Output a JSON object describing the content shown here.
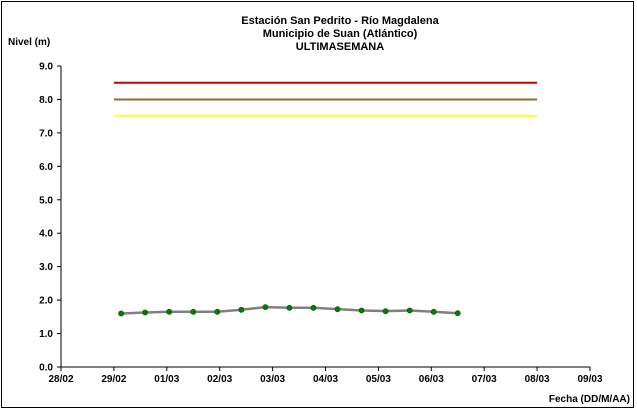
{
  "chart_data": {
    "type": "line",
    "title": [
      "Estación San Pedrito - Río Magdalena",
      "Municipio de Suan (Atlántico)",
      "ULTIMASEMANA"
    ],
    "ylabel": "Nivel (m)",
    "xlabel": "Fecha (DD/M/AA)",
    "ylim": [
      0,
      9
    ],
    "yticks": [
      "0.0",
      "1.0",
      "2.0",
      "3.0",
      "4.0",
      "5.0",
      "6.0",
      "7.0",
      "8.0",
      "9.0"
    ],
    "xlim": [
      0,
      11
    ],
    "xticks": [
      "28/02",
      "29/02",
      "01/03",
      "02/03",
      "03/03",
      "04/03",
      "05/03",
      "06/03",
      "07/03",
      "08/03",
      "09/03"
    ],
    "grid": false,
    "thresholds": [
      {
        "value": 8.5,
        "color": "#cc0000",
        "x_start": 1.1,
        "x_end": 9.9
      },
      {
        "value": 8.0,
        "color": "#996633",
        "x_start": 1.1,
        "x_end": 9.9
      },
      {
        "value": 7.5,
        "color": "#ffff33",
        "x_start": 1.1,
        "x_end": 9.9
      }
    ],
    "series": [
      {
        "line_color": "#808080",
        "marker_color": "#008000",
        "points": [
          {
            "x": 1.25,
            "y": 1.6
          },
          {
            "x": 1.75,
            "y": 1.63
          },
          {
            "x": 2.25,
            "y": 1.65
          },
          {
            "x": 2.75,
            "y": 1.65
          },
          {
            "x": 3.25,
            "y": 1.65
          },
          {
            "x": 3.75,
            "y": 1.71
          },
          {
            "x": 4.25,
            "y": 1.79
          },
          {
            "x": 4.75,
            "y": 1.77
          },
          {
            "x": 5.25,
            "y": 1.77
          },
          {
            "x": 5.75,
            "y": 1.73
          },
          {
            "x": 6.25,
            "y": 1.69
          },
          {
            "x": 6.75,
            "y": 1.67
          },
          {
            "x": 7.25,
            "y": 1.69
          },
          {
            "x": 7.75,
            "y": 1.65
          },
          {
            "x": 8.25,
            "y": 1.61
          }
        ]
      }
    ]
  }
}
